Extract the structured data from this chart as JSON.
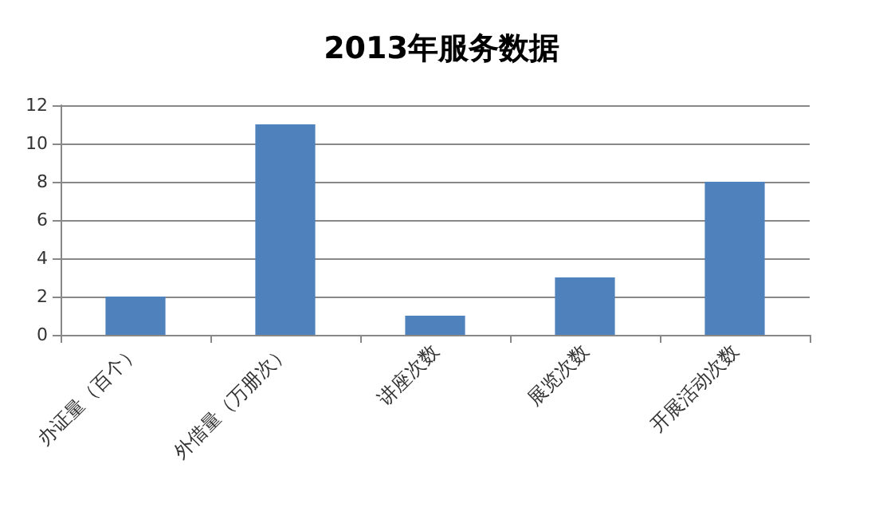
{
  "chart_data": {
    "type": "bar",
    "title": "2013年服务数据",
    "categories": [
      "办证量（百个）",
      "外借量（万册次）",
      "讲座次数",
      "展览次数",
      "开展活动次数"
    ],
    "values": [
      2,
      11,
      1,
      3,
      8
    ],
    "color": "#4f81bd",
    "ylim": [
      0,
      12
    ],
    "yticks": [
      0,
      2,
      4,
      6,
      8,
      10,
      12
    ],
    "grid": "y"
  }
}
